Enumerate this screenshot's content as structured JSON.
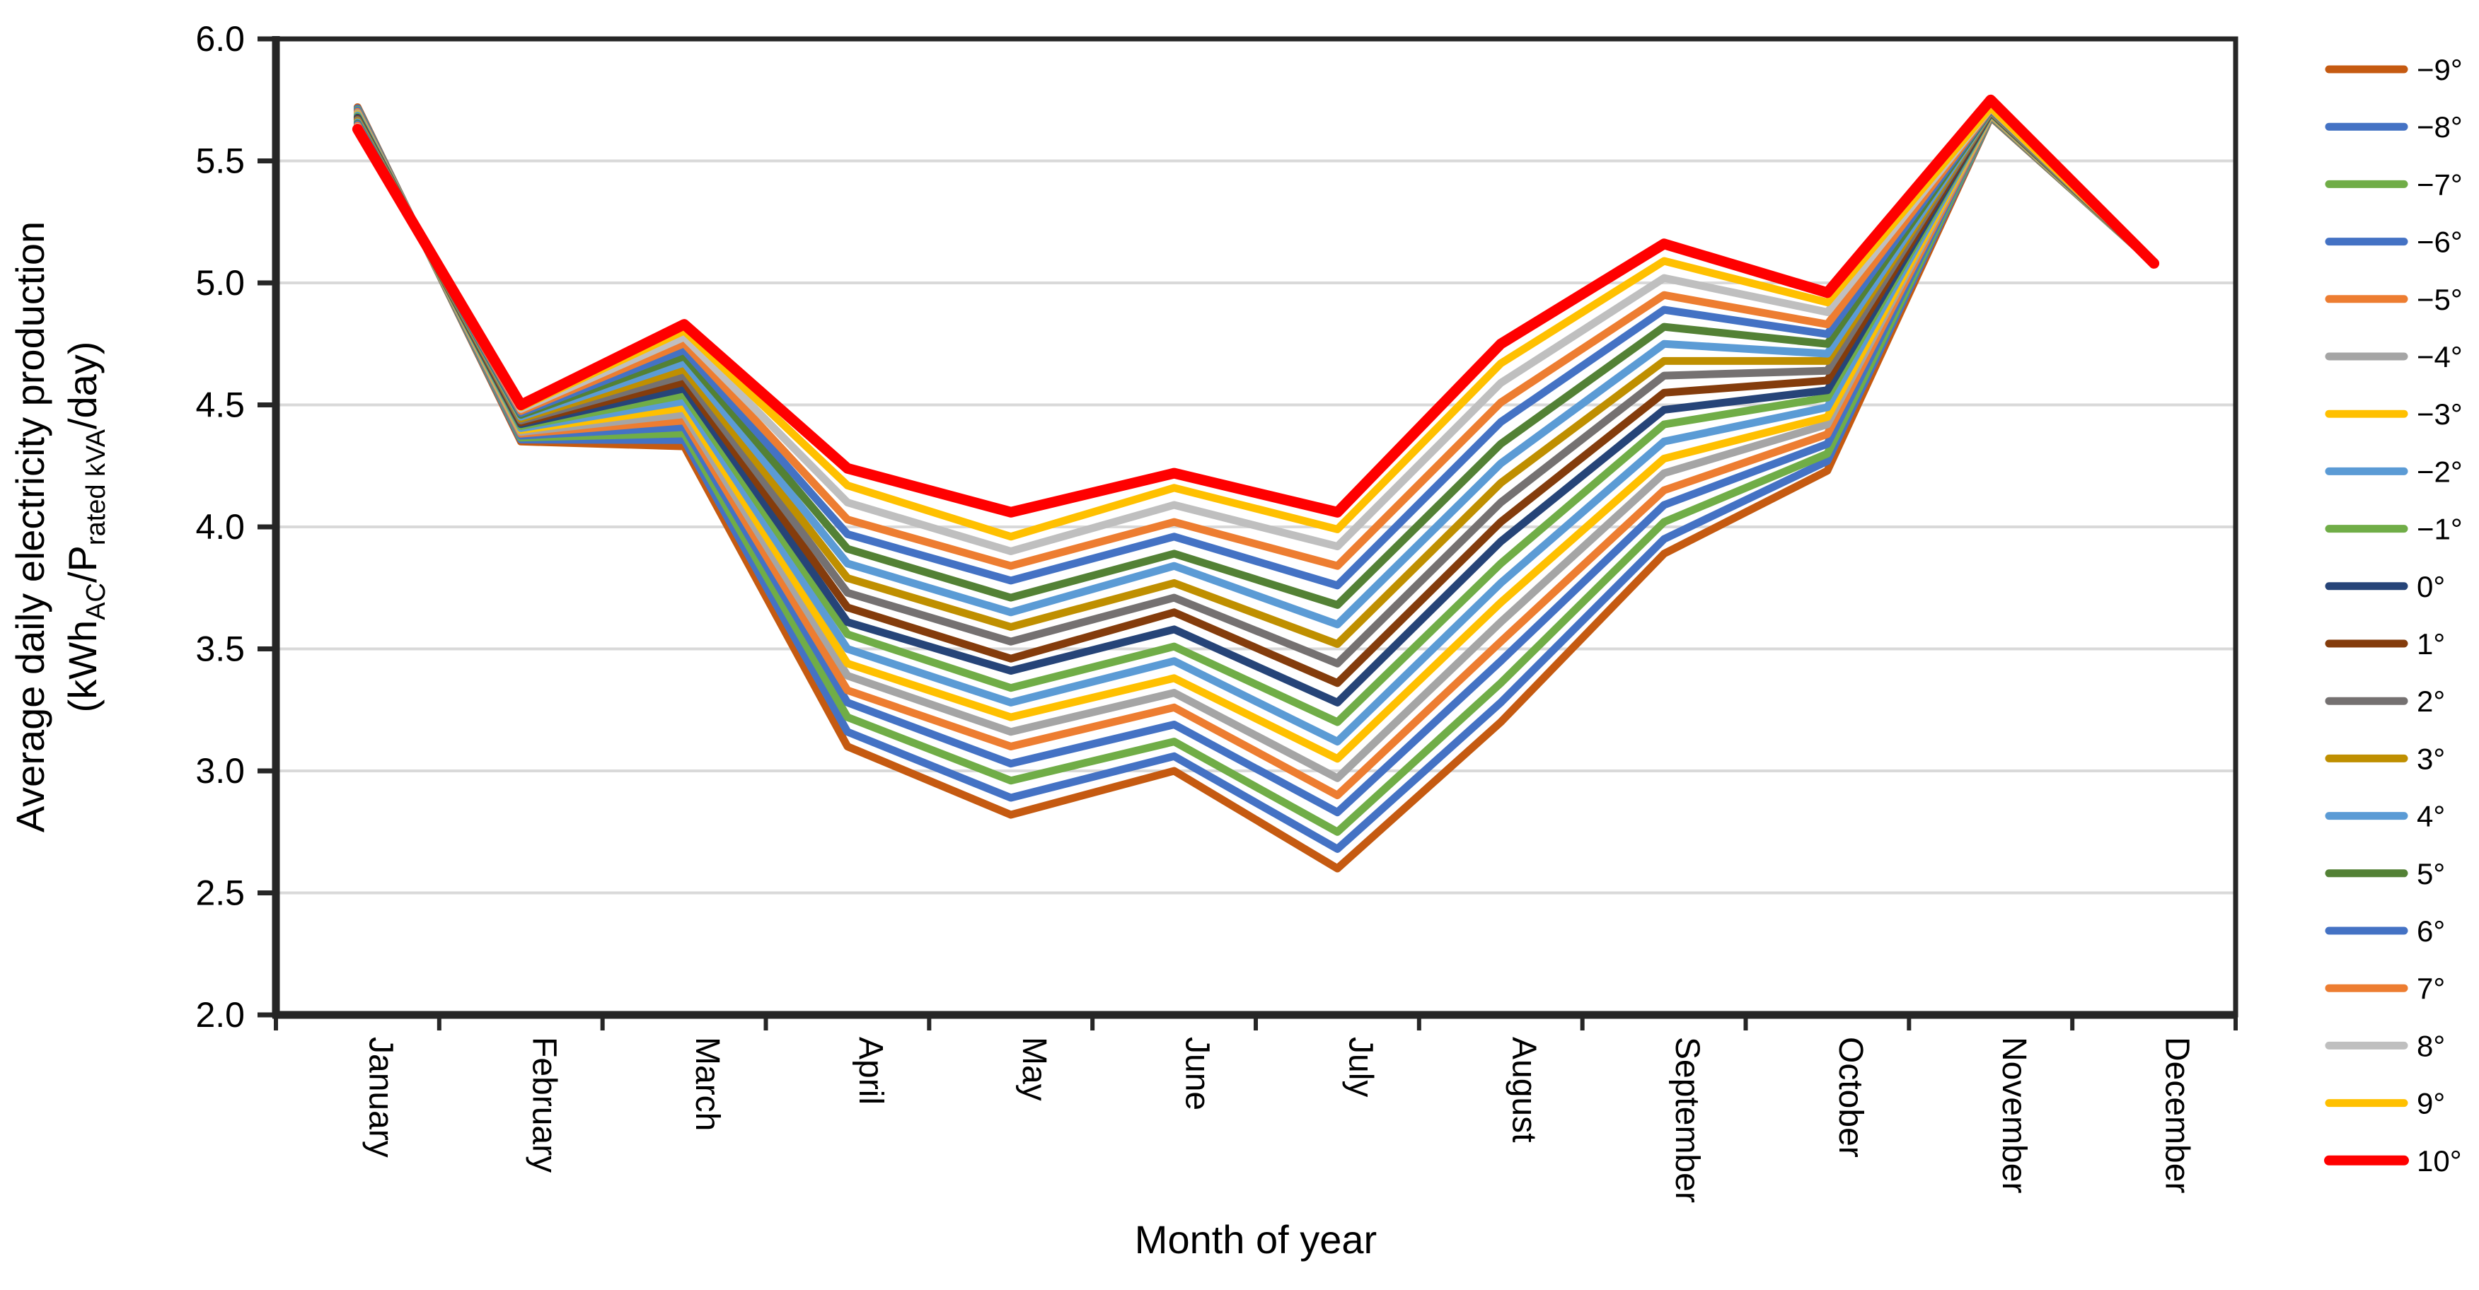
{
  "chart_data": {
    "type": "line",
    "title": "",
    "xlabel": "Month of year",
    "ylabel_line1": "Average daily electricity production",
    "ylabel_line2_segments": [
      {
        "t": "(kWh"
      },
      {
        "t": "AC",
        "sub": true
      },
      {
        "t": "/P"
      },
      {
        "t": "rated kVA",
        "sub": true
      },
      {
        "t": "/day)"
      }
    ],
    "ylim": [
      2.0,
      6.0
    ],
    "ytick_step": 0.5,
    "ytick_labels": [
      "6.0",
      "5.5",
      "5.0",
      "4.5",
      "4.0",
      "3.5",
      "3.0",
      "2.5",
      "2.0"
    ],
    "grid": "horizontal",
    "gridline_color": "#d9d9d9",
    "axis_color": "#262626",
    "legend_position": "right",
    "categories": [
      "January",
      "February",
      "March",
      "April",
      "May",
      "June",
      "July",
      "August",
      "September",
      "October",
      "November",
      "December"
    ],
    "series": [
      {
        "name": "−9°",
        "color": "#C55A11",
        "values": [
          5.72,
          4.35,
          4.33,
          3.1,
          2.82,
          3.0,
          2.6,
          3.2,
          3.89,
          4.23,
          5.68,
          5.08
        ]
      },
      {
        "name": "−8°",
        "color": "#4472C4",
        "values": [
          5.715,
          4.358,
          4.356,
          3.16,
          2.89,
          3.06,
          2.68,
          3.28,
          3.95,
          4.27,
          5.682,
          5.08
        ]
      },
      {
        "name": "−7°",
        "color": "#70AD47",
        "values": [
          5.71,
          4.366,
          4.383,
          3.22,
          2.96,
          3.12,
          2.75,
          3.36,
          4.02,
          4.3,
          5.684,
          5.08
        ]
      },
      {
        "name": "−6°",
        "color": "#4472C4",
        "values": [
          5.706,
          4.374,
          4.409,
          3.28,
          3.03,
          3.19,
          2.83,
          3.45,
          4.09,
          4.34,
          5.687,
          5.08
        ]
      },
      {
        "name": "−5°",
        "color": "#ED7D31",
        "values": [
          5.701,
          4.382,
          4.436,
          3.33,
          3.1,
          3.26,
          2.9,
          3.53,
          4.15,
          4.38,
          5.689,
          5.08
        ]
      },
      {
        "name": "−4°",
        "color": "#A5A5A5",
        "values": [
          5.696,
          4.389,
          4.462,
          3.39,
          3.16,
          3.32,
          2.97,
          3.61,
          4.22,
          4.42,
          5.691,
          5.08
        ]
      },
      {
        "name": "−3°",
        "color": "#FFC000",
        "values": [
          5.691,
          4.397,
          4.488,
          3.44,
          3.22,
          3.38,
          3.05,
          3.69,
          4.28,
          4.45,
          5.693,
          5.08
        ]
      },
      {
        "name": "−2°",
        "color": "#5B9BD5",
        "values": [
          5.687,
          4.405,
          4.515,
          3.5,
          3.28,
          3.45,
          3.12,
          3.77,
          4.35,
          4.49,
          5.696,
          5.08
        ]
      },
      {
        "name": "−1°",
        "color": "#70AD47",
        "values": [
          5.682,
          4.413,
          4.541,
          3.56,
          3.34,
          3.51,
          3.2,
          3.85,
          4.42,
          4.53,
          5.698,
          5.08
        ]
      },
      {
        "name": "0°",
        "color": "#264478",
        "values": [
          5.677,
          4.421,
          4.567,
          3.61,
          3.41,
          3.58,
          3.28,
          3.94,
          4.48,
          4.56,
          5.7,
          5.08
        ]
      },
      {
        "name": "1°",
        "color": "#843C0C",
        "values": [
          5.672,
          4.428,
          4.594,
          3.67,
          3.46,
          3.65,
          3.36,
          4.02,
          4.55,
          4.6,
          5.702,
          5.08
        ]
      },
      {
        "name": "2°",
        "color": "#757171",
        "values": [
          5.668,
          4.436,
          4.62,
          3.73,
          3.53,
          3.71,
          3.44,
          4.1,
          4.62,
          4.64,
          5.704,
          5.08
        ]
      },
      {
        "name": "3°",
        "color": "#BF8F00",
        "values": [
          5.663,
          4.444,
          4.646,
          3.79,
          3.59,
          3.77,
          3.52,
          4.18,
          4.68,
          4.68,
          5.707,
          5.08
        ]
      },
      {
        "name": "4°",
        "color": "#5B9BD5",
        "values": [
          5.658,
          4.452,
          4.673,
          3.85,
          3.65,
          3.84,
          3.6,
          4.26,
          4.75,
          4.71,
          5.709,
          5.08
        ]
      },
      {
        "name": "5°",
        "color": "#538135",
        "values": [
          5.653,
          4.459,
          4.699,
          3.91,
          3.71,
          3.89,
          3.68,
          4.34,
          4.82,
          4.75,
          5.711,
          5.08
        ]
      },
      {
        "name": "6°",
        "color": "#4472C4",
        "values": [
          5.649,
          4.467,
          4.725,
          3.97,
          3.78,
          3.96,
          3.76,
          4.43,
          4.89,
          4.79,
          5.713,
          5.08
        ]
      },
      {
        "name": "7°",
        "color": "#ED7D31",
        "values": [
          5.644,
          4.475,
          4.752,
          4.03,
          3.84,
          4.02,
          3.84,
          4.51,
          4.95,
          4.83,
          5.716,
          5.08
        ]
      },
      {
        "name": "8°",
        "color": "#BFBFBF",
        "values": [
          5.639,
          4.483,
          4.778,
          4.1,
          3.9,
          4.09,
          3.92,
          4.59,
          5.02,
          4.88,
          5.718,
          5.08
        ]
      },
      {
        "name": "9°",
        "color": "#FFC000",
        "values": [
          5.634,
          4.491,
          4.804,
          4.17,
          3.96,
          4.16,
          3.99,
          4.67,
          5.09,
          4.92,
          5.72,
          5.08
        ]
      },
      {
        "name": "10°",
        "color": "#FF0000",
        "values": [
          5.63,
          4.5,
          4.83,
          4.24,
          4.06,
          4.22,
          4.06,
          4.75,
          5.16,
          4.96,
          5.75,
          5.08
        ]
      }
    ]
  }
}
